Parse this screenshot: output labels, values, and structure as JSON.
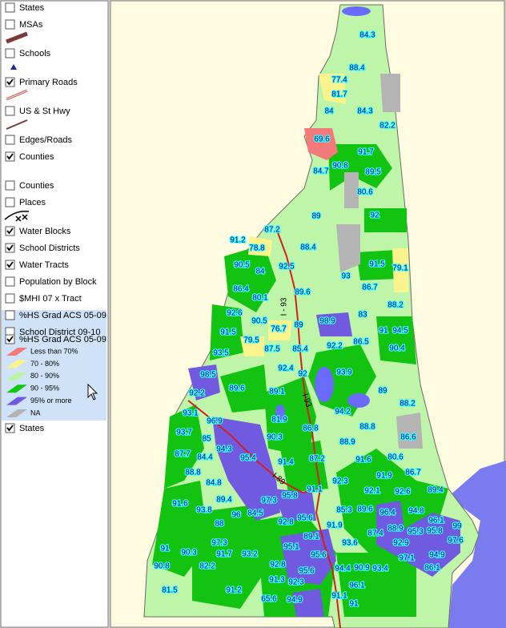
{
  "panel": {
    "layers": [
      {
        "name": "States",
        "checked": false
      },
      {
        "name": "MSAs",
        "checked": false
      },
      {
        "name": "Schools",
        "checked": false
      },
      {
        "name": "Primary Roads",
        "checked": true
      },
      {
        "name": "US & St Hwy",
        "checked": false
      },
      {
        "name": "Edges/Roads",
        "checked": false
      },
      {
        "name": "Counties",
        "checked": true
      },
      {
        "name": "Counties",
        "checked": false
      },
      {
        "name": "Places",
        "checked": false
      },
      {
        "name": "Water Blocks",
        "checked": true
      },
      {
        "name": "School Districts",
        "checked": true
      },
      {
        "name": "Water Tracts",
        "checked": true
      },
      {
        "name": "Population by Block",
        "checked": false
      },
      {
        "name": "$MHI 07 x Tract",
        "checked": false
      },
      {
        "name": "%HS Grad ACS 05-09",
        "checked": false
      },
      {
        "name": "School District 09-10",
        "checked": false
      }
    ],
    "active_layer": {
      "name": "%HS Grad ACS 05-09",
      "checked": true,
      "classes": [
        {
          "label": "Less than 70%",
          "color": "#f47a7a"
        },
        {
          "label": "70 - 80%",
          "color": "#fbf38c"
        },
        {
          "label": "80 - 90%",
          "color": "#b9f5a3"
        },
        {
          "label": "90 - 95%",
          "color": "#10c810"
        },
        {
          "label": "95% or more",
          "color": "#6f5ae0"
        },
        {
          "label": "NA",
          "color": "#b4b4b4"
        }
      ]
    },
    "last_layer": {
      "name": "States",
      "checked": true
    }
  },
  "map": {
    "road_labels": [
      "I - 93",
      "I-93",
      "I-89"
    ],
    "labels": [
      "84.3",
      "88.4",
      "77.4",
      "81.7",
      "84",
      "84.3",
      "82.2",
      "69.6",
      "91.7",
      "90.8",
      "84.7",
      "89.5",
      "80.6",
      "89",
      "92",
      "87.2",
      "91.2",
      "78.8",
      "88.4",
      "90.5",
      "84",
      "92.5",
      "91.5",
      "79.1",
      "93",
      "86.4",
      "80.1",
      "89.6",
      "86.7",
      "88.2",
      "92.6",
      "83",
      "90.5",
      "76.7",
      "89",
      "98.9",
      "91",
      "94.5",
      "91.5",
      "79.5",
      "86.5",
      "92.2",
      "90.4",
      "87.5",
      "85.4",
      "93.5",
      "92.4",
      "92",
      "93.9",
      "98.5",
      "89.6",
      "89.1",
      "89",
      "92.2",
      "88.2",
      "94.2",
      "93.1",
      "96.9",
      "81.9",
      "88.8",
      "86.8",
      "88.9",
      "93.7",
      "85",
      "94.3",
      "90.3",
      "86.6",
      "87.7",
      "84.4",
      "95.4",
      "87.2",
      "80.6",
      "91.4",
      "91.6",
      "88.8",
      "86.7",
      "84.8",
      "92.3",
      "92.1",
      "91.9",
      "92.6",
      "89.4",
      "89.4",
      "91.1",
      "95.8",
      "97.3",
      "91.6",
      "93.8",
      "84.5",
      "96",
      "85.3",
      "89.6",
      "96.4",
      "94.8",
      "88",
      "92.8",
      "95.6",
      "91.9",
      "88.9",
      "95.3",
      "95.8",
      "96.1",
      "99",
      "87.4",
      "89.1",
      "93.6",
      "92.9",
      "97.6",
      "97.3",
      "95.1",
      "91.7",
      "93.2",
      "91",
      "90.3",
      "95.6",
      "97.1",
      "94.9",
      "90.8",
      "82.2",
      "92.8",
      "86.1",
      "95.6",
      "94.4",
      "90.9",
      "93.4",
      "91.3",
      "92.3",
      "81.5",
      "91.2",
      "96.1",
      "65.6",
      "94.9",
      "91.1",
      "91"
    ]
  }
}
